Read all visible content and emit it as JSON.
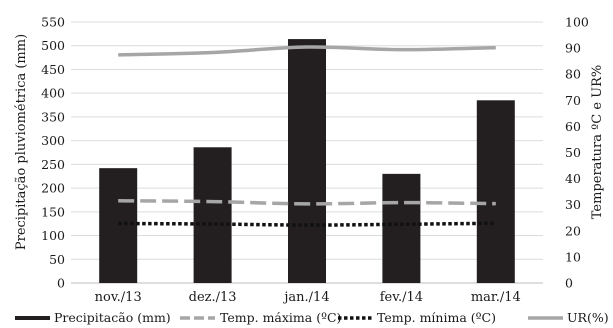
{
  "chart_data": {
    "type": "bar",
    "title": "",
    "categories": [
      "nov./13",
      "dez./13",
      "jan./14",
      "fev./14",
      "mar./14"
    ],
    "ylabel": "Precipitação pluviométrica (mm)",
    "y2label": "Temperatura ºC e UR%",
    "ylim": [
      0,
      550
    ],
    "y2lim": [
      0,
      100
    ],
    "yticks": [
      "0",
      "50",
      "100",
      "150",
      "200",
      "250",
      "300",
      "350",
      "400",
      "450",
      "500",
      "550"
    ],
    "y2ticks": [
      "0",
      "10",
      "20",
      "30",
      "40",
      "50",
      "60",
      "70",
      "80",
      "90",
      "100"
    ],
    "grid": true,
    "legend_position": "bottom",
    "series": [
      {
        "name": "Precipitacão (mm)",
        "kind": "bar",
        "axis": "left",
        "values": [
          242,
          286,
          514,
          230,
          385
        ],
        "color": "#231f20"
      },
      {
        "name": "Temp. máxima (ºC)",
        "kind": "line",
        "axis": "right",
        "style": "dashed",
        "values": [
          31.5,
          31.2,
          30.3,
          30.8,
          30.4
        ],
        "color": "#a6a6a6"
      },
      {
        "name": "Temp. mínima (ºC)",
        "kind": "line",
        "axis": "right",
        "style": "dotted",
        "values": [
          22.8,
          22.6,
          22.2,
          22.5,
          22.9
        ],
        "color": "#111111"
      },
      {
        "name": "UR(%)",
        "kind": "line",
        "axis": "right",
        "style": "solid",
        "values": [
          87.4,
          88.3,
          90.4,
          89.4,
          90.2
        ],
        "color": "#a6a6a6"
      }
    ]
  }
}
